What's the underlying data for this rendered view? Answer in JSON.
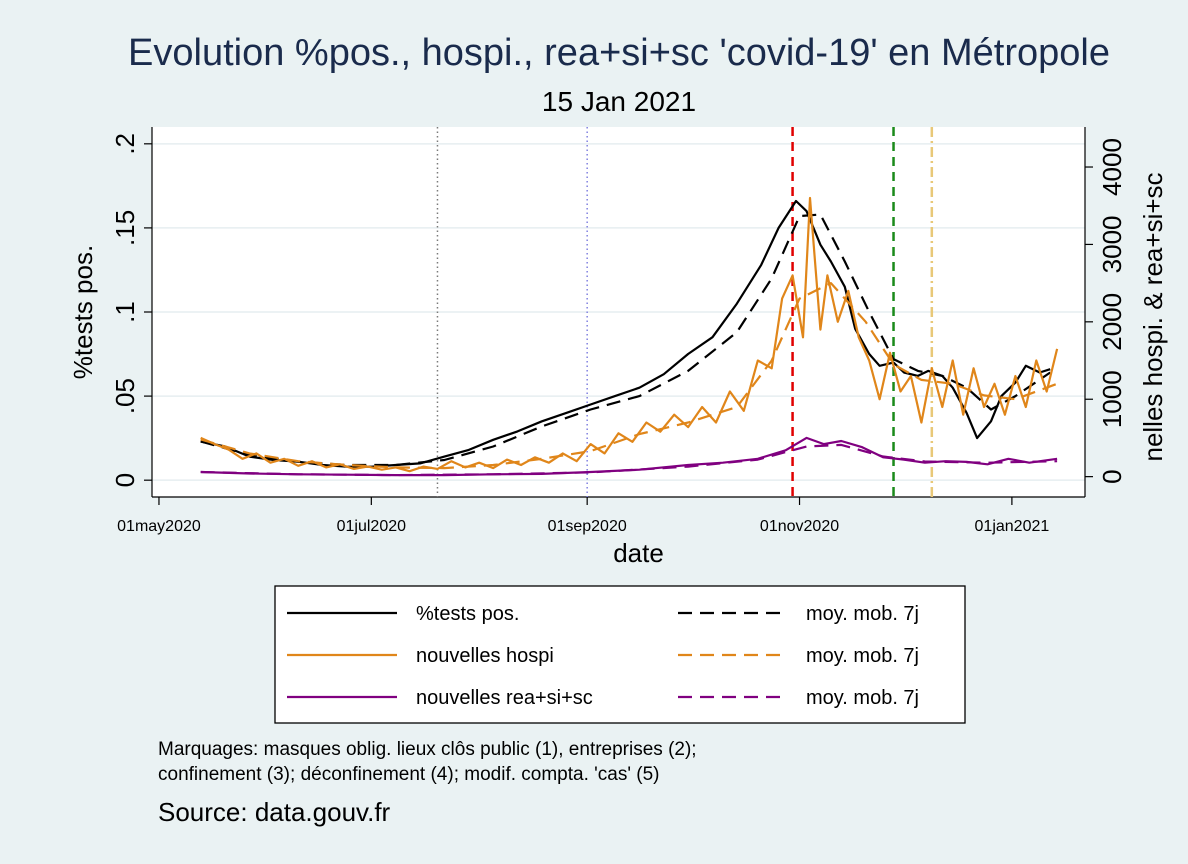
{
  "chart_data": {
    "type": "line",
    "title": "Evolution %pos., hospi., rea+si+sc 'covid-19' en Métropole",
    "subtitle": "15 Jan 2021",
    "xlabel": "date",
    "ylabel_left": "%tests pos.",
    "ylabel_right": "nelles hospi. & rea+si+sc",
    "x_ticks": [
      "01may2020",
      "01jul2020",
      "01sep2020",
      "01nov2020",
      "01jan2021"
    ],
    "x_range": [
      "2020-04-29",
      "2021-01-22"
    ],
    "ylim_left": [
      -0.01,
      0.21
    ],
    "ylim_right": [
      -263,
      4517
    ],
    "y_ticks_left": [
      "0",
      ".05",
      ".1",
      ".15",
      ".2"
    ],
    "y_ticks_right": [
      "0",
      "1000",
      "2000",
      "3000",
      "4000"
    ],
    "grid": true,
    "legend_position": "bottom",
    "markers": [
      {
        "date": "2020-07-20",
        "label": "masques oblig. lieux clôs public (1)",
        "color": "#7a7a7a",
        "style": "dotted"
      },
      {
        "date": "2020-09-01",
        "label": "entreprises (2)",
        "color": "#8080e0",
        "style": "dotted"
      },
      {
        "date": "2020-10-30",
        "label": "confinement (3)",
        "color": "#e00000",
        "style": "dashed"
      },
      {
        "date": "2020-11-28",
        "label": "déconfinement (4)",
        "color": "#1a8a1a",
        "style": "dashed"
      },
      {
        "date": "2020-12-09",
        "label": "modif. compta. 'cas' (5)",
        "color": "#e8c878",
        "style": "dashdot"
      }
    ],
    "series": [
      {
        "name": "%tests pos.",
        "axis": "left",
        "color": "#000000",
        "dash": false,
        "x": [
          "2020-05-13",
          "2020-05-20",
          "2020-05-27",
          "2020-06-03",
          "2020-06-10",
          "2020-06-17",
          "2020-06-24",
          "2020-07-01",
          "2020-07-08",
          "2020-07-15",
          "2020-07-22",
          "2020-07-29",
          "2020-08-05",
          "2020-08-12",
          "2020-08-19",
          "2020-08-26",
          "2020-09-02",
          "2020-09-09",
          "2020-09-16",
          "2020-09-23",
          "2020-09-30",
          "2020-10-07",
          "2020-10-14",
          "2020-10-21",
          "2020-10-26",
          "2020-10-31",
          "2020-11-03",
          "2020-11-07",
          "2020-11-10",
          "2020-11-14",
          "2020-11-17",
          "2020-11-21",
          "2020-11-24",
          "2020-11-28",
          "2020-12-01",
          "2020-12-05",
          "2020-12-08",
          "2020-12-12",
          "2020-12-15",
          "2020-12-19",
          "2020-12-22",
          "2020-12-26",
          "2020-12-29",
          "2021-01-02",
          "2021-01-05",
          "2021-01-09",
          "2021-01-12"
        ],
        "values": [
          0.023,
          0.02,
          0.014,
          0.012,
          0.011,
          0.009,
          0.008,
          0.008,
          0.009,
          0.01,
          0.014,
          0.018,
          0.024,
          0.029,
          0.035,
          0.04,
          0.045,
          0.05,
          0.055,
          0.063,
          0.075,
          0.085,
          0.105,
          0.128,
          0.15,
          0.166,
          0.16,
          0.14,
          0.13,
          0.115,
          0.09,
          0.075,
          0.068,
          0.07,
          0.064,
          0.062,
          0.065,
          0.062,
          0.055,
          0.04,
          0.025,
          0.035,
          0.05,
          0.058,
          0.068,
          0.064,
          0.066
        ]
      },
      {
        "name": "moy. mob. 7j",
        "axis": "left",
        "color": "#000000",
        "dash": true,
        "x": [
          "2020-05-13",
          "2020-05-27",
          "2020-06-10",
          "2020-06-24",
          "2020-07-08",
          "2020-07-22",
          "2020-08-05",
          "2020-08-19",
          "2020-09-02",
          "2020-09-16",
          "2020-09-30",
          "2020-10-14",
          "2020-10-24",
          "2020-11-01",
          "2020-11-07",
          "2020-11-14",
          "2020-11-21",
          "2020-11-28",
          "2020-12-05",
          "2020-12-12",
          "2020-12-19",
          "2020-12-26",
          "2021-01-02",
          "2021-01-12"
        ],
        "values": [
          0.023,
          0.015,
          0.011,
          0.009,
          0.009,
          0.012,
          0.02,
          0.032,
          0.042,
          0.05,
          0.065,
          0.088,
          0.12,
          0.157,
          0.158,
          0.13,
          0.1,
          0.072,
          0.065,
          0.062,
          0.055,
          0.042,
          0.05,
          0.064
        ]
      },
      {
        "name": "nouvelles hospi",
        "axis": "right",
        "color": "#e0861a",
        "dash": false,
        "x": [
          "2020-05-13",
          "2020-05-17",
          "2020-05-21",
          "2020-05-25",
          "2020-05-29",
          "2020-06-02",
          "2020-06-06",
          "2020-06-10",
          "2020-06-14",
          "2020-06-18",
          "2020-06-22",
          "2020-06-26",
          "2020-06-30",
          "2020-07-04",
          "2020-07-08",
          "2020-07-12",
          "2020-07-16",
          "2020-07-20",
          "2020-07-24",
          "2020-07-28",
          "2020-08-01",
          "2020-08-05",
          "2020-08-09",
          "2020-08-13",
          "2020-08-17",
          "2020-08-21",
          "2020-08-25",
          "2020-08-29",
          "2020-09-02",
          "2020-09-06",
          "2020-09-10",
          "2020-09-14",
          "2020-09-18",
          "2020-09-22",
          "2020-09-26",
          "2020-09-30",
          "2020-10-04",
          "2020-10-08",
          "2020-10-12",
          "2020-10-16",
          "2020-10-20",
          "2020-10-24",
          "2020-10-27",
          "2020-10-30",
          "2020-11-02",
          "2020-11-04",
          "2020-11-07",
          "2020-11-09",
          "2020-11-12",
          "2020-11-15",
          "2020-11-18",
          "2020-11-21",
          "2020-11-24",
          "2020-11-27",
          "2020-11-30",
          "2020-12-03",
          "2020-12-06",
          "2020-12-09",
          "2020-12-12",
          "2020-12-15",
          "2020-12-18",
          "2020-12-21",
          "2020-12-24",
          "2020-12-27",
          "2020-12-30",
          "2021-01-02",
          "2021-01-05",
          "2021-01-08",
          "2021-01-11",
          "2021-01-14"
        ],
        "values": [
          500,
          420,
          350,
          230,
          300,
          180,
          230,
          140,
          200,
          120,
          160,
          100,
          130,
          90,
          120,
          70,
          130,
          100,
          200,
          120,
          180,
          110,
          220,
          150,
          250,
          180,
          300,
          200,
          420,
          300,
          560,
          450,
          700,
          580,
          800,
          640,
          900,
          700,
          1100,
          850,
          1500,
          1400,
          2300,
          2600,
          1800,
          3600,
          1900,
          2600,
          2000,
          2400,
          1800,
          1500,
          1000,
          1600,
          1100,
          1300,
          700,
          1400,
          900,
          1500,
          800,
          1400,
          900,
          1200,
          800,
          1300,
          900,
          1500,
          1100,
          1650
        ]
      },
      {
        "name": "moy. mob. 7j",
        "axis": "right",
        "color": "#e0861a",
        "dash": true,
        "x": [
          "2020-05-13",
          "2020-05-27",
          "2020-06-10",
          "2020-06-24",
          "2020-07-08",
          "2020-07-22",
          "2020-08-05",
          "2020-08-19",
          "2020-09-02",
          "2020-09-16",
          "2020-09-30",
          "2020-10-14",
          "2020-10-24",
          "2020-11-01",
          "2020-11-10",
          "2020-11-20",
          "2020-11-28",
          "2020-12-06",
          "2020-12-15",
          "2020-12-24",
          "2021-01-02",
          "2021-01-14"
        ],
        "values": [
          480,
          300,
          200,
          150,
          120,
          110,
          150,
          230,
          330,
          550,
          700,
          900,
          1500,
          2300,
          2500,
          2000,
          1450,
          1250,
          1200,
          1050,
          1000,
          1200
        ]
      },
      {
        "name": "nouvelles rea+si+sc",
        "axis": "right",
        "color": "#800080",
        "dash": false,
        "x": [
          "2020-05-13",
          "2020-05-27",
          "2020-06-10",
          "2020-06-24",
          "2020-07-08",
          "2020-07-22",
          "2020-08-05",
          "2020-08-19",
          "2020-09-02",
          "2020-09-16",
          "2020-09-30",
          "2020-10-10",
          "2020-10-20",
          "2020-10-28",
          "2020-11-03",
          "2020-11-08",
          "2020-11-13",
          "2020-11-19",
          "2020-11-25",
          "2020-12-01",
          "2020-12-07",
          "2020-12-13",
          "2020-12-19",
          "2020-12-25",
          "2020-12-31",
          "2021-01-06",
          "2021-01-14"
        ],
        "values": [
          60,
          40,
          30,
          25,
          20,
          20,
          30,
          35,
          60,
          90,
          150,
          180,
          230,
          340,
          500,
          420,
          460,
          380,
          250,
          220,
          180,
          200,
          190,
          160,
          230,
          180,
          230
        ]
      },
      {
        "name": "moy. mob. 7j",
        "axis": "right",
        "color": "#800080",
        "dash": true,
        "x": [
          "2020-05-13",
          "2020-06-10",
          "2020-07-08",
          "2020-08-05",
          "2020-09-02",
          "2020-09-30",
          "2020-10-20",
          "2020-11-03",
          "2020-11-13",
          "2020-11-25",
          "2020-12-07",
          "2020-12-25",
          "2021-01-14"
        ],
        "values": [
          60,
          30,
          20,
          30,
          55,
          130,
          220,
          390,
          410,
          260,
          195,
          180,
          200
        ]
      }
    ]
  },
  "legend": {
    "rows": [
      {
        "left": "%tests pos.",
        "right": "moy. mob. 7j",
        "color": "#000000"
      },
      {
        "left": "nouvelles hospi",
        "right": "moy. mob. 7j",
        "color": "#e0861a"
      },
      {
        "left": "nouvelles rea+si+sc",
        "right": "moy. mob. 7j",
        "color": "#800080"
      }
    ]
  },
  "note": {
    "line1": "Marquages: masques oblig. lieux clôs public (1), entreprises (2);",
    "line2": "confinement (3); déconfinement (4); modif. compta. 'cas' (5)"
  },
  "source": "Source: data.gouv.fr"
}
